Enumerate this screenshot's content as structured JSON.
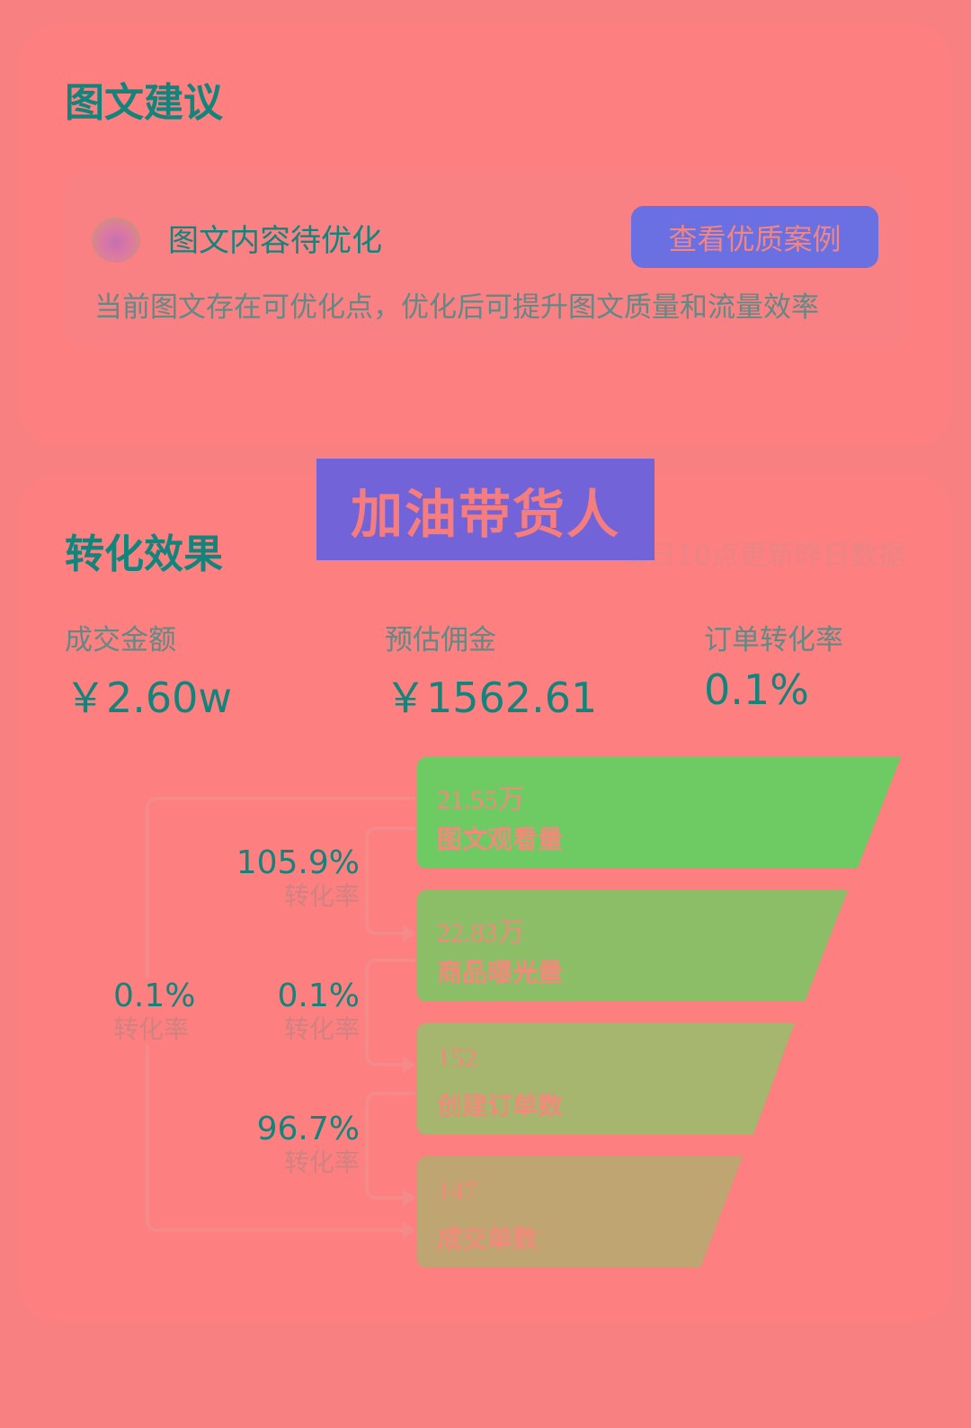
{
  "suggestion_card": {
    "title": "图文建议",
    "status_title": "图文内容待优化",
    "button_label": "查看优质案例",
    "description": "当前图文存在可优化点，优化后可提升图文质量和流量效率"
  },
  "overlay_banner": "加油带货人",
  "conversion_card": {
    "title": "转化效果",
    "update_note": "每日10点更新昨日数据",
    "metrics": [
      {
        "label": "成交金额",
        "value": "￥2.60w"
      },
      {
        "label": "预估佣金",
        "value": "￥1562.61"
      },
      {
        "label": "订单转化率",
        "value": "0.1%"
      }
    ],
    "funnel": [
      {
        "value": "21.55万",
        "label": "图文观看量",
        "color": "#6ecb63"
      },
      {
        "value": "22.83万",
        "label": "商品曝光量",
        "color": "#8bbe67"
      },
      {
        "value": "152",
        "label": "创建订单数",
        "color": "#a6b66e"
      },
      {
        "value": "147",
        "label": "成交单数",
        "color": "#bea572"
      }
    ],
    "rates": [
      {
        "value": "105.9%",
        "label": "转化率"
      },
      {
        "value": "0.1%",
        "label": "转化率"
      },
      {
        "value": "96.7%",
        "label": "转化率"
      },
      {
        "value": "0.1%",
        "label": "转化率"
      }
    ]
  }
}
